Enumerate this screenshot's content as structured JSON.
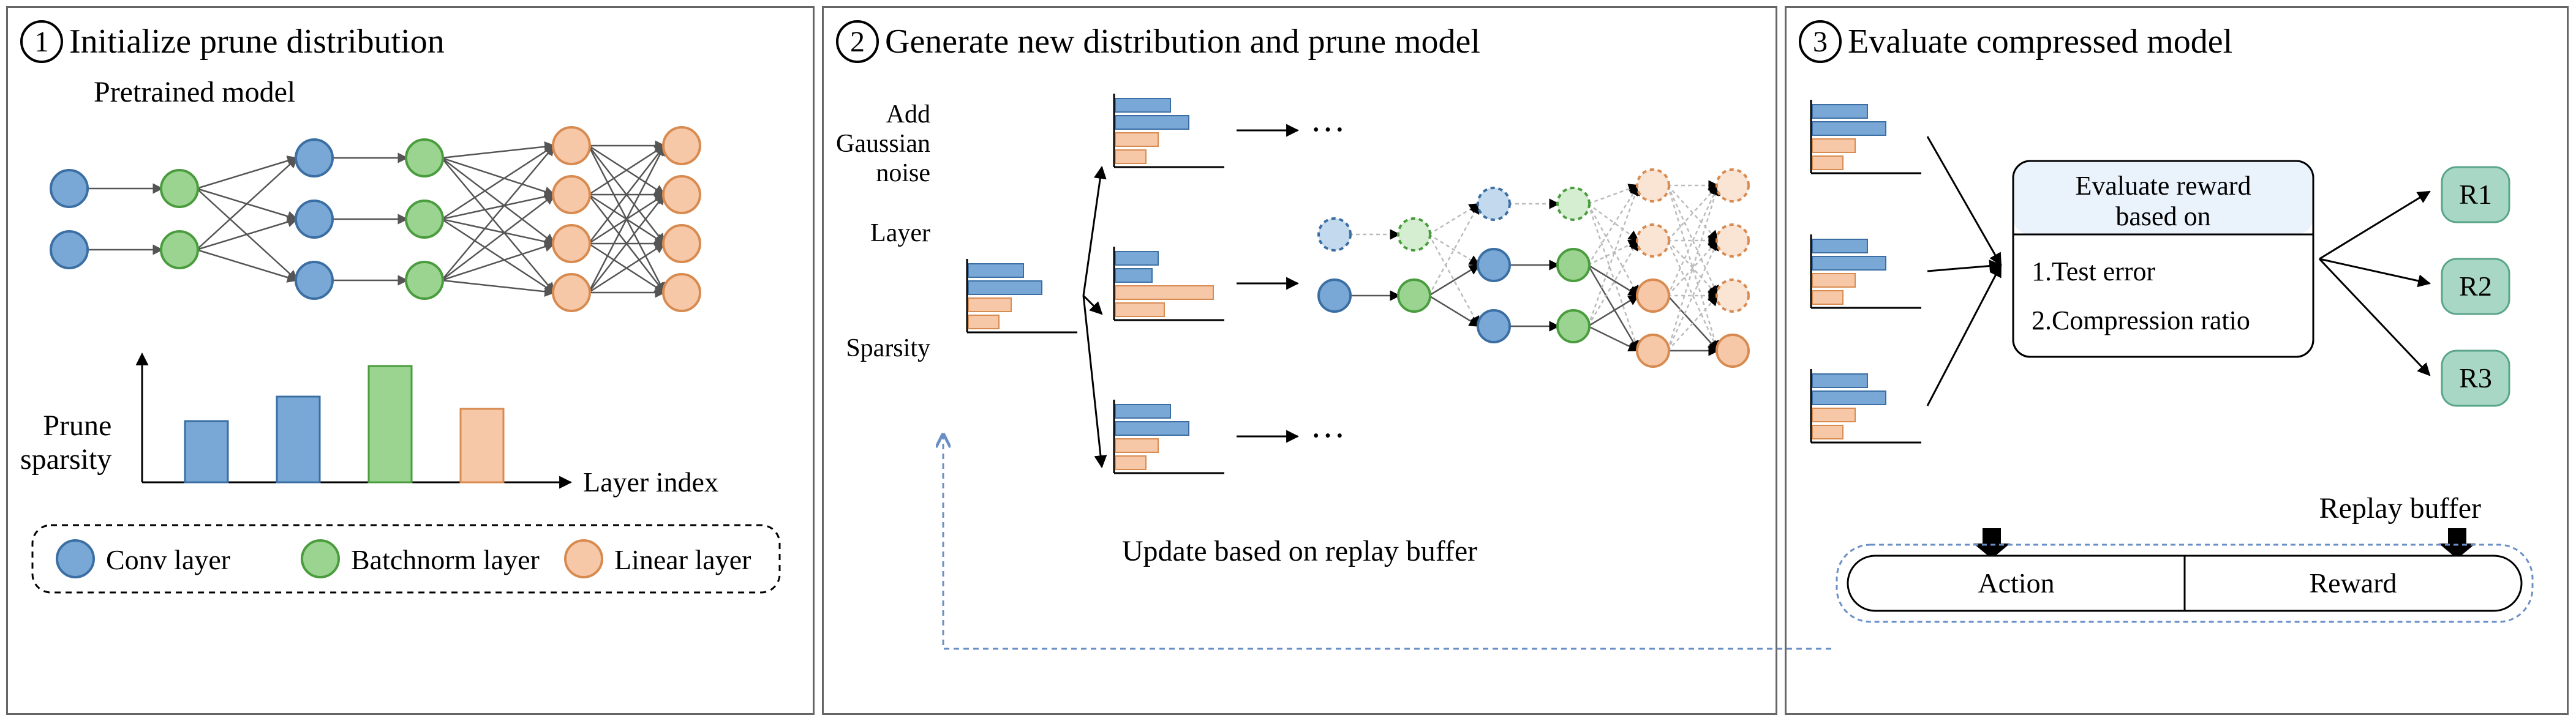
{
  "panels": {
    "p1": {
      "num": "1",
      "title": "Initialize prune distribution",
      "subtitle": "Pretrained model",
      "chart_ylabel_l1": "Prune",
      "chart_ylabel_l2": "sparsity",
      "chart_xlabel": "Layer index",
      "legend": {
        "conv": "Conv layer",
        "bn": "Batchnorm layer",
        "lin": "Linear layer"
      }
    },
    "p2": {
      "num": "2",
      "title": "Generate new distribution and prune model",
      "noise_l1": "Add",
      "noise_l2": "Gaussian",
      "noise_l3": "noise",
      "layer_label": "Layer",
      "sparsity_label": "Sparsity",
      "dots": "···",
      "update_label": "Update based on replay buffer"
    },
    "p3": {
      "num": "3",
      "title": "Evaluate compressed model",
      "eval_l1": "Evaluate reward",
      "eval_l2": "based on",
      "eval_item1": "1.Test error",
      "eval_item2": "2.Compression ratio",
      "r1": "R1",
      "r2": "R2",
      "r3": "R3",
      "replay_label": "Replay buffer",
      "action": "Action",
      "reward": "Reward"
    }
  },
  "colors": {
    "conv_fill": "#7aa8d6",
    "conv_stroke": "#3b6fa3",
    "bn_fill": "#9bd490",
    "bn_stroke": "#4a9c3e",
    "lin_fill": "#f6c8a8",
    "lin_stroke": "#d88b50",
    "conv_faded": "#c3d9ed",
    "bn_faded": "#d5edd0",
    "lin_faded": "#fae4d4",
    "r_fill": "#a8d8c5",
    "r_stroke": "#5aa58a",
    "buffer_fill": "#eaf2fb",
    "dash_blue": "#6a8fc7",
    "border": "#666666",
    "arrow": "#555555",
    "black": "#000000"
  },
  "chart1": {
    "bars": [
      {
        "h": 100,
        "color": "conv"
      },
      {
        "h": 140,
        "color": "conv"
      },
      {
        "h": 190,
        "color": "bn"
      },
      {
        "h": 120,
        "color": "lin"
      }
    ]
  },
  "mini_bars": {
    "set": [
      {
        "w": 90,
        "color": "conv"
      },
      {
        "w": 120,
        "color": "conv"
      },
      {
        "w": 70,
        "color": "lin"
      },
      {
        "w": 50,
        "color": "lin"
      }
    ],
    "set_long": [
      {
        "w": 70,
        "color": "conv"
      },
      {
        "w": 60,
        "color": "conv"
      },
      {
        "w": 160,
        "color": "lin"
      },
      {
        "w": 80,
        "color": "lin"
      }
    ]
  }
}
